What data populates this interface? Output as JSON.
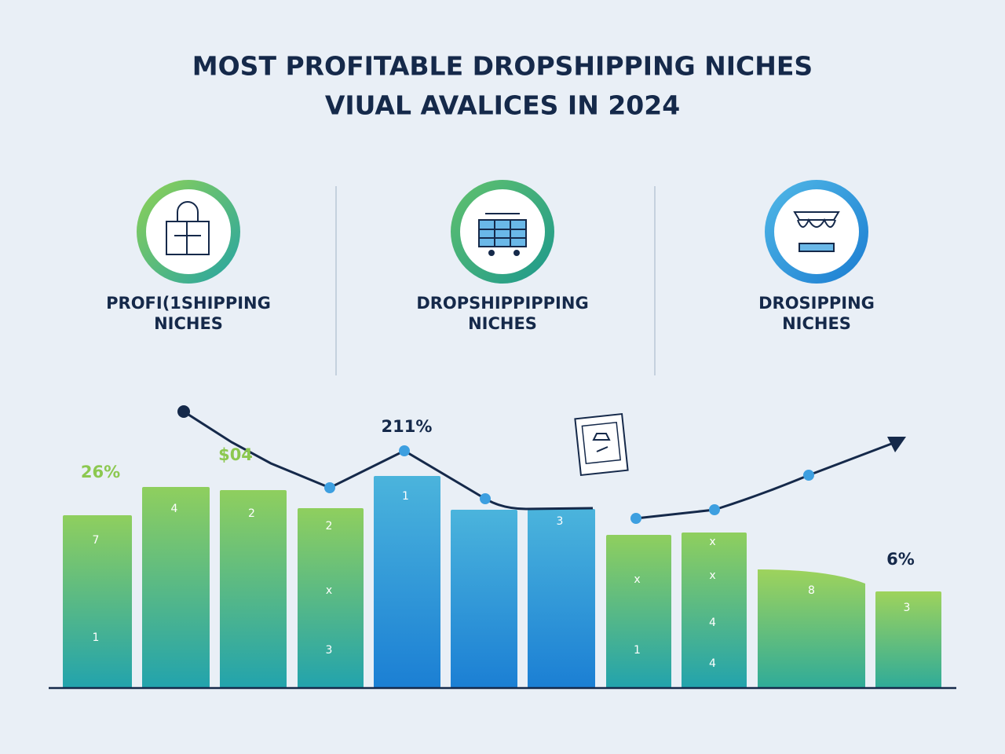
{
  "header": {
    "title": [
      "MOST PROFITABLE DROPSHIPPING NICHES",
      "VIUAL AVALICES IN 2024"
    ]
  },
  "features": [
    {
      "label": [
        "PROFI(1SHIPPING",
        "NICHES"
      ]
    },
    {
      "label": [
        "DROPSHIPPIPPING",
        "NICHES"
      ]
    },
    {
      "label": [
        "DROSIPPING",
        "NICHES"
      ]
    }
  ],
  "chart": {
    "bars": [
      {
        "labels": [
          "7",
          "1"
        ]
      },
      {
        "labels": [
          "4"
        ]
      },
      {
        "labels": [
          "2"
        ]
      },
      {
        "labels": [
          "2",
          "x",
          "3"
        ]
      },
      {
        "labels": [
          "1"
        ]
      },
      {
        "labels": []
      },
      {
        "labels": [
          "3"
        ]
      },
      {
        "labels": [
          "x",
          "1"
        ]
      },
      {
        "labels": [
          "x",
          "x",
          "4",
          "4"
        ]
      },
      {
        "labels": [
          "8"
        ]
      },
      {
        "labels": [
          "3"
        ]
      }
    ],
    "callouts": [
      "26%",
      "$04",
      "211%",
      "6%"
    ]
  }
}
